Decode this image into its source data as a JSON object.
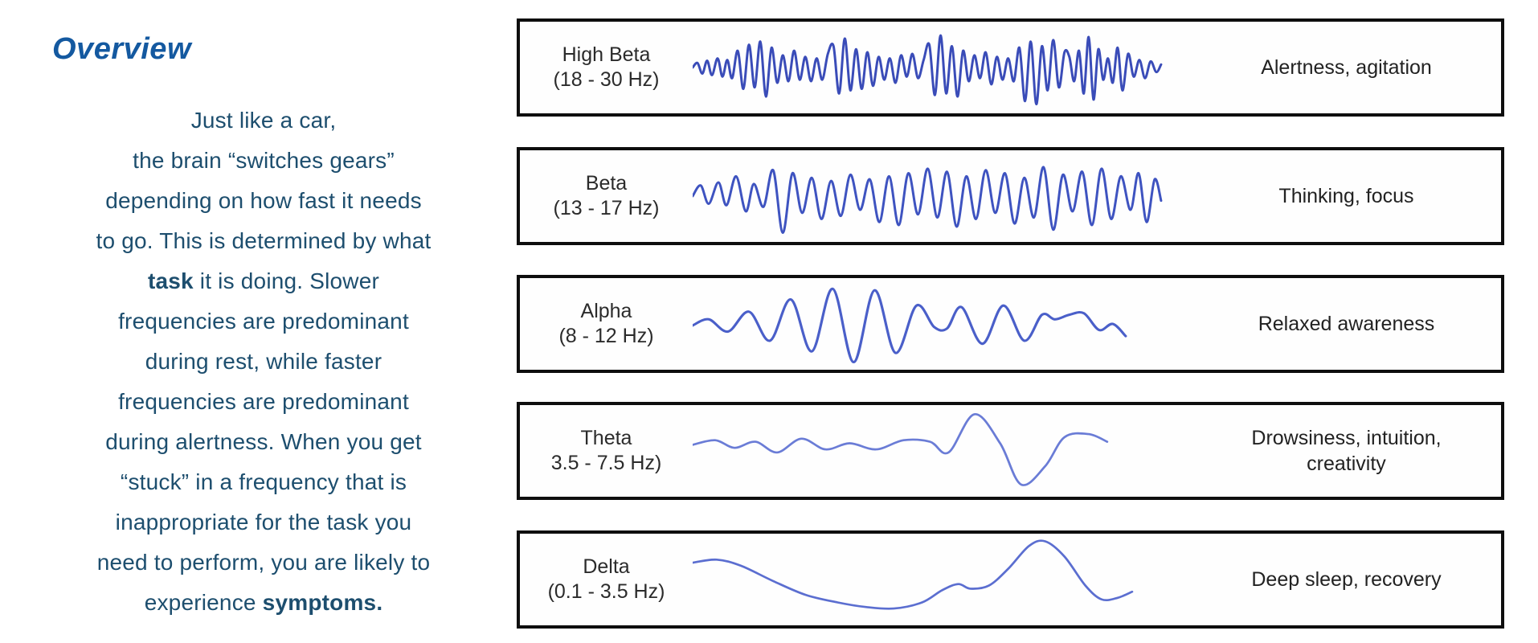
{
  "page": {
    "background": "#ffffff"
  },
  "overview": {
    "title": "Overview",
    "title_color": "#1459a0",
    "text_color": "#1d4e6e",
    "p1": "Just like a car,\nthe brain “switches gears”\ndepending on how fast it needs\nto go. This is determined by what\n",
    "bold1": "task",
    "p2": " it is doing. Slower\nfrequencies are predominant\nduring rest, while faster\nfrequencies are predominant\nduring alertness. When you get\n“stuck” in a frequency that is\ninappropriate for the task you\nneed to perform, you are likely to\nexperience ",
    "bold2": "symptoms."
  },
  "waves": [
    {
      "name": "High Beta",
      "range": "(18 - 30 Hz)",
      "description": "Alertness, agitation",
      "stroke": "#3a4cb8",
      "stroke_width": 3,
      "points": [
        [
          0,
          0
        ],
        [
          6,
          6
        ],
        [
          12,
          -8
        ],
        [
          18,
          9
        ],
        [
          24,
          -10
        ],
        [
          31,
          12
        ],
        [
          37,
          -12
        ],
        [
          43,
          10
        ],
        [
          49,
          -14
        ],
        [
          56,
          22
        ],
        [
          63,
          -28
        ],
        [
          70,
          30
        ],
        [
          77,
          -26
        ],
        [
          84,
          34
        ],
        [
          91,
          -38
        ],
        [
          98,
          26
        ],
        [
          105,
          -20
        ],
        [
          112,
          16
        ],
        [
          119,
          -18
        ],
        [
          126,
          22
        ],
        [
          133,
          -16
        ],
        [
          140,
          14
        ],
        [
          147,
          -18
        ],
        [
          154,
          12
        ],
        [
          161,
          -16
        ],
        [
          168,
          18
        ],
        [
          175,
          28
        ],
        [
          182,
          -34
        ],
        [
          189,
          38
        ],
        [
          196,
          -30
        ],
        [
          203,
          24
        ],
        [
          210,
          -28
        ],
        [
          217,
          20
        ],
        [
          224,
          -24
        ],
        [
          231,
          14
        ],
        [
          238,
          -16
        ],
        [
          245,
          12
        ],
        [
          252,
          -20
        ],
        [
          259,
          16
        ],
        [
          266,
          -12
        ],
        [
          273,
          18
        ],
        [
          280,
          -14
        ],
        [
          287,
          10
        ],
        [
          294,
          30
        ],
        [
          301,
          -36
        ],
        [
          308,
          42
        ],
        [
          315,
          -34
        ],
        [
          322,
          28
        ],
        [
          329,
          -38
        ],
        [
          336,
          22
        ],
        [
          343,
          -18
        ],
        [
          350,
          16
        ],
        [
          357,
          -14
        ],
        [
          364,
          20
        ],
        [
          371,
          -22
        ],
        [
          378,
          14
        ],
        [
          385,
          -16
        ],
        [
          392,
          12
        ],
        [
          399,
          -18
        ],
        [
          406,
          26
        ],
        [
          413,
          -44
        ],
        [
          420,
          34
        ],
        [
          427,
          -48
        ],
        [
          434,
          28
        ],
        [
          441,
          -30
        ],
        [
          448,
          36
        ],
        [
          455,
          -26
        ],
        [
          462,
          20
        ],
        [
          468,
          14
        ],
        [
          474,
          -18
        ],
        [
          480,
          22
        ],
        [
          486,
          -34
        ],
        [
          492,
          40
        ],
        [
          498,
          -42
        ],
        [
          504,
          24
        ],
        [
          510,
          -16
        ],
        [
          516,
          12
        ],
        [
          522,
          -20
        ],
        [
          528,
          26
        ],
        [
          534,
          -30
        ],
        [
          541,
          18
        ],
        [
          548,
          -12
        ],
        [
          555,
          10
        ],
        [
          562,
          -14
        ],
        [
          569,
          8
        ],
        [
          576,
          -6
        ],
        [
          582,
          4
        ]
      ]
    },
    {
      "name": "Beta",
      "range": "(13 - 17 Hz)",
      "description": "Thinking, focus",
      "stroke": "#3e53c0",
      "stroke_width": 3,
      "points": [
        [
          0,
          0
        ],
        [
          10,
          14
        ],
        [
          20,
          -10
        ],
        [
          32,
          18
        ],
        [
          42,
          -12
        ],
        [
          54,
          26
        ],
        [
          66,
          -20
        ],
        [
          76,
          16
        ],
        [
          88,
          -14
        ],
        [
          100,
          34
        ],
        [
          112,
          -48
        ],
        [
          124,
          30
        ],
        [
          136,
          -22
        ],
        [
          148,
          24
        ],
        [
          160,
          -30
        ],
        [
          172,
          20
        ],
        [
          184,
          -26
        ],
        [
          196,
          28
        ],
        [
          208,
          -18
        ],
        [
          220,
          22
        ],
        [
          232,
          -34
        ],
        [
          244,
          26
        ],
        [
          256,
          -38
        ],
        [
          268,
          30
        ],
        [
          280,
          -24
        ],
        [
          292,
          36
        ],
        [
          304,
          -28
        ],
        [
          316,
          32
        ],
        [
          328,
          -40
        ],
        [
          340,
          26
        ],
        [
          352,
          -30
        ],
        [
          364,
          34
        ],
        [
          376,
          -22
        ],
        [
          388,
          30
        ],
        [
          400,
          -36
        ],
        [
          412,
          24
        ],
        [
          424,
          -28
        ],
        [
          436,
          38
        ],
        [
          448,
          -44
        ],
        [
          460,
          28
        ],
        [
          472,
          -20
        ],
        [
          484,
          32
        ],
        [
          496,
          -38
        ],
        [
          508,
          36
        ],
        [
          520,
          -30
        ],
        [
          532,
          26
        ],
        [
          544,
          -18
        ],
        [
          554,
          30
        ],
        [
          564,
          -34
        ],
        [
          574,
          22
        ],
        [
          582,
          -6
        ]
      ]
    },
    {
      "name": "Alpha",
      "range": "(8 - 12 Hz)",
      "description": "Relaxed awareness",
      "stroke": "#4a5fc9",
      "stroke_width": 3.2,
      "points": [
        [
          0,
          -2
        ],
        [
          20,
          6
        ],
        [
          44,
          -10
        ],
        [
          70,
          16
        ],
        [
          96,
          -22
        ],
        [
          122,
          32
        ],
        [
          148,
          -36
        ],
        [
          174,
          46
        ],
        [
          200,
          -50
        ],
        [
          226,
          44
        ],
        [
          252,
          -38
        ],
        [
          278,
          24
        ],
        [
          300,
          -4
        ],
        [
          316,
          -6
        ],
        [
          334,
          22
        ],
        [
          360,
          -26
        ],
        [
          386,
          24
        ],
        [
          412,
          -22
        ],
        [
          434,
          12
        ],
        [
          450,
          6
        ],
        [
          468,
          12
        ],
        [
          486,
          14
        ],
        [
          505,
          -8
        ],
        [
          522,
          0
        ],
        [
          538,
          -16
        ]
      ]
    },
    {
      "name": "Theta",
      "range": "3.5 - 7.5 Hz)",
      "description": "Drowsiness, intuition,\ncreativity",
      "stroke": "#6a7cd6",
      "stroke_width": 2.8,
      "points": [
        [
          0,
          8
        ],
        [
          28,
          14
        ],
        [
          52,
          4
        ],
        [
          78,
          12
        ],
        [
          105,
          -2
        ],
        [
          135,
          16
        ],
        [
          165,
          2
        ],
        [
          195,
          10
        ],
        [
          228,
          2
        ],
        [
          262,
          14
        ],
        [
          295,
          12
        ],
        [
          318,
          -2
        ],
        [
          350,
          48
        ],
        [
          382,
          10
        ],
        [
          408,
          -44
        ],
        [
          438,
          -20
        ],
        [
          462,
          18
        ],
        [
          492,
          22
        ],
        [
          515,
          12
        ]
      ]
    },
    {
      "name": "Delta",
      "range": "(0.1 - 3.5 Hz)",
      "description": "Deep sleep, recovery",
      "stroke": "#5b6ed0",
      "stroke_width": 2.8,
      "points": [
        [
          0,
          22
        ],
        [
          30,
          26
        ],
        [
          60,
          18
        ],
        [
          100,
          -2
        ],
        [
          140,
          -20
        ],
        [
          180,
          -30
        ],
        [
          215,
          -36
        ],
        [
          250,
          -38
        ],
        [
          285,
          -30
        ],
        [
          310,
          -14
        ],
        [
          330,
          -6
        ],
        [
          345,
          -12
        ],
        [
          368,
          -8
        ],
        [
          392,
          14
        ],
        [
          418,
          44
        ],
        [
          438,
          50
        ],
        [
          462,
          30
        ],
        [
          488,
          -8
        ],
        [
          508,
          -26
        ],
        [
          528,
          -24
        ],
        [
          546,
          -16
        ]
      ]
    }
  ]
}
